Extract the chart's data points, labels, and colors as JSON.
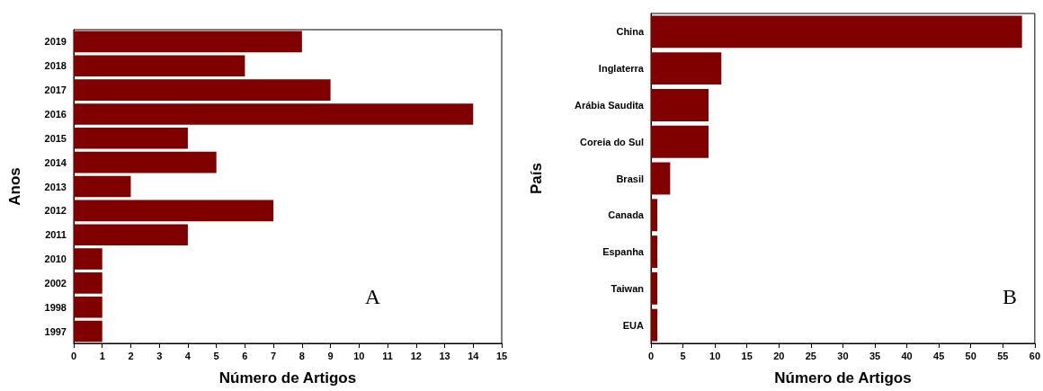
{
  "chart_data": [
    {
      "type": "bar",
      "orientation": "horizontal",
      "categories": [
        "2019",
        "2018",
        "2017",
        "2016",
        "2015",
        "2014",
        "2013",
        "2012",
        "2011",
        "2010",
        "2002",
        "1998",
        "1997"
      ],
      "values": [
        8,
        6,
        9,
        14,
        4,
        5,
        2,
        7,
        4,
        1,
        1,
        1,
        1
      ],
      "color": "#800000",
      "xlim": [
        0,
        15
      ],
      "xticks": [
        0,
        1,
        2,
        3,
        4,
        5,
        6,
        7,
        8,
        9,
        10,
        11,
        12,
        13,
        14,
        15
      ],
      "xlabel": "Número de Artigos",
      "ylabel": "Anos",
      "annotations": [
        "A"
      ]
    },
    {
      "type": "bar",
      "orientation": "horizontal",
      "categories": [
        "China",
        "Inglaterra",
        "Arábia Saudita",
        "Coreia do Sul",
        "Brasil",
        "Canada",
        "Espanha",
        "Taiwan",
        "EUA"
      ],
      "values": [
        58,
        11,
        9,
        9,
        3,
        1,
        1,
        1,
        1
      ],
      "color": "#800000",
      "xlim": [
        0,
        60
      ],
      "xticks": [
        0,
        5,
        10,
        15,
        20,
        25,
        30,
        35,
        40,
        45,
        50,
        55,
        60
      ],
      "xlabel": "Número de Artigos",
      "ylabel": "País",
      "annotations": [
        "B"
      ]
    }
  ]
}
